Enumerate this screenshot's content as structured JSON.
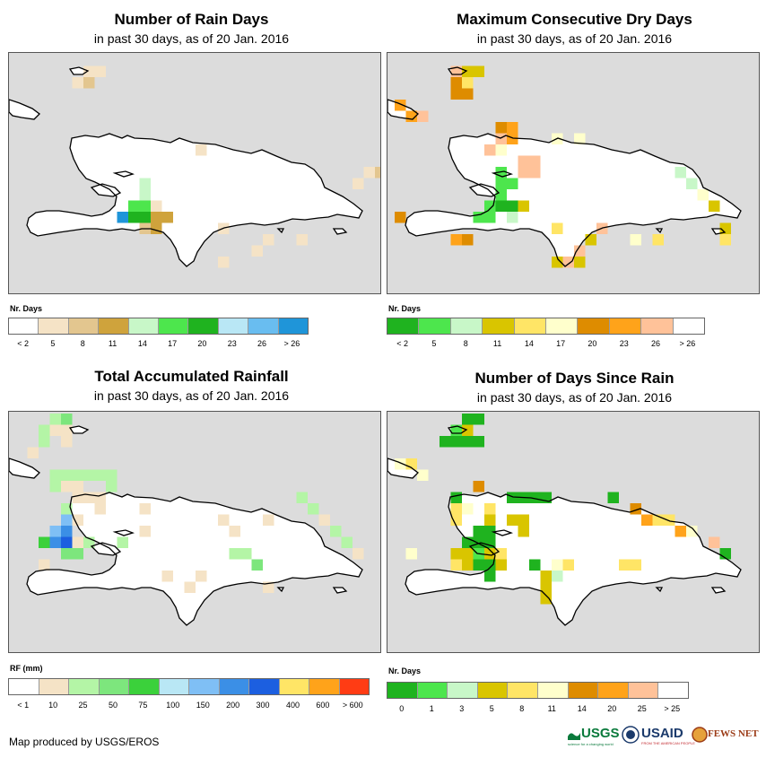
{
  "panels": [
    {
      "id": "rain_days",
      "title": "Number of Rain Days",
      "subtitle": "in past 30 days, as of 20 Jan. 2016",
      "legend_title": "Nr. Days",
      "legend_colors": [
        "#ffffff",
        "#f5e3c6",
        "#e3c68f",
        "#cfa33c",
        "#c8f7c8",
        "#4de64d",
        "#1fb31f",
        "#b9e7f5",
        "#69bdf0",
        "#1f95d9"
      ],
      "legend_labels": [
        "< 2",
        "5",
        "8",
        "11",
        "14",
        "17",
        "20",
        "23",
        "26",
        "> 26"
      ],
      "cells": [
        {
          "c": 6,
          "r": 1,
          "v": 1
        },
        {
          "c": 7,
          "r": 1,
          "v": 1
        },
        {
          "c": 6,
          "r": 2,
          "v": 2
        },
        {
          "c": 5,
          "r": 2,
          "v": 1
        },
        {
          "c": 16,
          "r": 8,
          "v": 1
        },
        {
          "c": 11,
          "r": 11,
          "v": 4
        },
        {
          "c": 11,
          "r": 12,
          "v": 4
        },
        {
          "c": 11,
          "r": 13,
          "v": 5
        },
        {
          "c": 9,
          "r": 14,
          "v": 9
        },
        {
          "c": 10,
          "r": 14,
          "v": 6
        },
        {
          "c": 11,
          "r": 14,
          "v": 6
        },
        {
          "c": 12,
          "r": 14,
          "v": 3
        },
        {
          "c": 13,
          "r": 14,
          "v": 3
        },
        {
          "c": 10,
          "r": 13,
          "v": 5
        },
        {
          "c": 12,
          "r": 13,
          "v": 1
        },
        {
          "c": 11,
          "r": 15,
          "v": 2
        },
        {
          "c": 12,
          "r": 15,
          "v": 3
        },
        {
          "c": 31,
          "r": 10,
          "v": 1
        },
        {
          "c": 32,
          "r": 10,
          "v": 2
        },
        {
          "c": 33,
          "r": 11,
          "v": 2
        },
        {
          "c": 33,
          "r": 12,
          "v": 3
        },
        {
          "c": 30,
          "r": 11,
          "v": 1
        },
        {
          "c": 18,
          "r": 15,
          "v": 1
        },
        {
          "c": 22,
          "r": 16,
          "v": 1
        },
        {
          "c": 25,
          "r": 16,
          "v": 1
        },
        {
          "c": 18,
          "r": 18,
          "v": 1
        },
        {
          "c": 21,
          "r": 17,
          "v": 1
        }
      ]
    },
    {
      "id": "max_dry_days",
      "title": "Maximum Consecutive Dry Days",
      "subtitle": "in past 30 days, as of 20 Jan. 2016",
      "legend_title": "Nr. Days",
      "legend_colors": [
        "#1fb31f",
        "#4de64d",
        "#c8f7c8",
        "#d9c500",
        "#ffe566",
        "#ffffcc",
        "#de8c00",
        "#ffa31a",
        "#ffc299",
        "#ffffff"
      ],
      "legend_labels": [
        "< 2",
        "5",
        "8",
        "11",
        "14",
        "17",
        "20",
        "23",
        "26",
        "> 26"
      ],
      "cells": [
        {
          "c": 5,
          "r": 1,
          "v": 8
        },
        {
          "c": 6,
          "r": 1,
          "v": 3
        },
        {
          "c": 7,
          "r": 1,
          "v": 3
        },
        {
          "c": 5,
          "r": 2,
          "v": 6
        },
        {
          "c": 6,
          "r": 2,
          "v": 4
        },
        {
          "c": 5,
          "r": 3,
          "v": 6
        },
        {
          "c": 6,
          "r": 3,
          "v": 6
        },
        {
          "c": 0,
          "r": 4,
          "v": 7
        },
        {
          "c": 1,
          "r": 5,
          "v": 7
        },
        {
          "c": 2,
          "r": 5,
          "v": 8
        },
        {
          "c": 9,
          "r": 6,
          "v": 6
        },
        {
          "c": 10,
          "r": 6,
          "v": 7
        },
        {
          "c": 9,
          "r": 7,
          "v": 8
        },
        {
          "c": 10,
          "r": 7,
          "v": 7
        },
        {
          "c": 8,
          "r": 8,
          "v": 8
        },
        {
          "c": 9,
          "r": 8,
          "v": 5
        },
        {
          "c": 11,
          "r": 9,
          "v": 8
        },
        {
          "c": 12,
          "r": 9,
          "v": 8
        },
        {
          "c": 11,
          "r": 10,
          "v": 8
        },
        {
          "c": 12,
          "r": 10,
          "v": 8
        },
        {
          "c": 9,
          "r": 10,
          "v": 1
        },
        {
          "c": 9,
          "r": 11,
          "v": 1
        },
        {
          "c": 9,
          "r": 12,
          "v": 1
        },
        {
          "c": 8,
          "r": 13,
          "v": 1
        },
        {
          "c": 9,
          "r": 13,
          "v": 0
        },
        {
          "c": 10,
          "r": 13,
          "v": 0
        },
        {
          "c": 10,
          "r": 14,
          "v": 2
        },
        {
          "c": 7,
          "r": 14,
          "v": 1
        },
        {
          "c": 8,
          "r": 14,
          "v": 1
        },
        {
          "c": 10,
          "r": 11,
          "v": 1
        },
        {
          "c": 11,
          "r": 13,
          "v": 3
        },
        {
          "c": 0,
          "r": 14,
          "v": 6
        },
        {
          "c": 5,
          "r": 16,
          "v": 7
        },
        {
          "c": 6,
          "r": 16,
          "v": 6
        },
        {
          "c": 14,
          "r": 15,
          "v": 4
        },
        {
          "c": 18,
          "r": 15,
          "v": 8
        },
        {
          "c": 17,
          "r": 16,
          "v": 3
        },
        {
          "c": 16,
          "r": 17,
          "v": 8
        },
        {
          "c": 14,
          "r": 18,
          "v": 3
        },
        {
          "c": 15,
          "r": 18,
          "v": 8
        },
        {
          "c": 16,
          "r": 18,
          "v": 3
        },
        {
          "c": 21,
          "r": 16,
          "v": 5
        },
        {
          "c": 23,
          "r": 16,
          "v": 4
        },
        {
          "c": 25,
          "r": 10,
          "v": 2
        },
        {
          "c": 26,
          "r": 11,
          "v": 2
        },
        {
          "c": 27,
          "r": 12,
          "v": 5
        },
        {
          "c": 28,
          "r": 13,
          "v": 3
        },
        {
          "c": 29,
          "r": 15,
          "v": 3
        },
        {
          "c": 29,
          "r": 16,
          "v": 4
        },
        {
          "c": 14,
          "r": 7,
          "v": 5
        },
        {
          "c": 16,
          "r": 7,
          "v": 5
        }
      ]
    },
    {
      "id": "total_rainfall",
      "title": "Total Accumulated Rainfall",
      "subtitle": "in past 30 days, as of 20 Jan. 2016",
      "legend_title": "RF (mm)",
      "legend_colors": [
        "#ffffff",
        "#f5e3c6",
        "#b4f5a6",
        "#7de67d",
        "#3bd13b",
        "#b9e7f5",
        "#7fbff5",
        "#3b8fe6",
        "#1c5fe0",
        "#ffe566",
        "#ffa31a",
        "#ff3c14"
      ],
      "legend_labels": [
        "< 1",
        "10",
        "25",
        "50",
        "75",
        "100",
        "150",
        "200",
        "300",
        "400",
        "600",
        "> 600"
      ],
      "cells": [
        {
          "c": 3,
          "r": 0,
          "v": 2
        },
        {
          "c": 4,
          "r": 0,
          "v": 3
        },
        {
          "c": 3,
          "r": 1,
          "v": 1
        },
        {
          "c": 4,
          "r": 1,
          "v": 1
        },
        {
          "c": 2,
          "r": 1,
          "v": 2
        },
        {
          "c": 2,
          "r": 2,
          "v": 2
        },
        {
          "c": 4,
          "r": 2,
          "v": 1
        },
        {
          "c": 1,
          "r": 3,
          "v": 1
        },
        {
          "c": 3,
          "r": 5,
          "v": 2
        },
        {
          "c": 4,
          "r": 5,
          "v": 2
        },
        {
          "c": 5,
          "r": 5,
          "v": 2
        },
        {
          "c": 6,
          "r": 5,
          "v": 2
        },
        {
          "c": 3,
          "r": 6,
          "v": 2
        },
        {
          "c": 7,
          "r": 5,
          "v": 2
        },
        {
          "c": 8,
          "r": 5,
          "v": 2
        },
        {
          "c": 8,
          "r": 6,
          "v": 2
        },
        {
          "c": 4,
          "r": 6,
          "v": 1
        },
        {
          "c": 5,
          "r": 6,
          "v": 1
        },
        {
          "c": 6,
          "r": 7,
          "v": 1
        },
        {
          "c": 5,
          "r": 7,
          "v": 1
        },
        {
          "c": 4,
          "r": 8,
          "v": 2
        },
        {
          "c": 4,
          "r": 9,
          "v": 6
        },
        {
          "c": 4,
          "r": 10,
          "v": 7
        },
        {
          "c": 5,
          "r": 9,
          "v": 1
        },
        {
          "c": 3,
          "r": 10,
          "v": 6
        },
        {
          "c": 4,
          "r": 11,
          "v": 8
        },
        {
          "c": 3,
          "r": 11,
          "v": 7
        },
        {
          "c": 2,
          "r": 11,
          "v": 4
        },
        {
          "c": 5,
          "r": 11,
          "v": 1
        },
        {
          "c": 4,
          "r": 12,
          "v": 3
        },
        {
          "c": 5,
          "r": 12,
          "v": 3
        },
        {
          "c": 6,
          "r": 11,
          "v": 2
        },
        {
          "c": 7,
          "r": 8,
          "v": 1
        },
        {
          "c": 7,
          "r": 7,
          "v": 1
        },
        {
          "c": 11,
          "r": 10,
          "v": 1
        },
        {
          "c": 9,
          "r": 11,
          "v": 2
        },
        {
          "c": 2,
          "r": 13,
          "v": 1
        },
        {
          "c": 13,
          "r": 14,
          "v": 1
        },
        {
          "c": 16,
          "r": 14,
          "v": 1
        },
        {
          "c": 15,
          "r": 15,
          "v": 1
        },
        {
          "c": 19,
          "r": 12,
          "v": 2
        },
        {
          "c": 20,
          "r": 12,
          "v": 2
        },
        {
          "c": 25,
          "r": 7,
          "v": 2
        },
        {
          "c": 26,
          "r": 8,
          "v": 2
        },
        {
          "c": 27,
          "r": 9,
          "v": 1
        },
        {
          "c": 28,
          "r": 10,
          "v": 2
        },
        {
          "c": 29,
          "r": 11,
          "v": 2
        },
        {
          "c": 22,
          "r": 9,
          "v": 1
        },
        {
          "c": 11,
          "r": 8,
          "v": 1
        },
        {
          "c": 21,
          "r": 13,
          "v": 3
        },
        {
          "c": 22,
          "r": 15,
          "v": 1
        },
        {
          "c": 30,
          "r": 12,
          "v": 1
        },
        {
          "c": 19,
          "r": 10,
          "v": 1
        },
        {
          "c": 18,
          "r": 9,
          "v": 1
        }
      ]
    },
    {
      "id": "days_since_rain",
      "title": "Number of Days Since Rain",
      "subtitle": "in past 30 days, as of 20 Jan. 2016",
      "legend_title": "Nr. Days",
      "legend_colors": [
        "#1fb31f",
        "#4de64d",
        "#c8f7c8",
        "#d9c500",
        "#ffe566",
        "#ffffcc",
        "#de8c00",
        "#ffa31a",
        "#ffc299",
        "#ffffff"
      ],
      "legend_labels": [
        "0",
        "1",
        "3",
        "5",
        "8",
        "11",
        "14",
        "20",
        "25",
        "> 25"
      ],
      "cells": [
        {
          "c": 6,
          "r": 0,
          "v": 0
        },
        {
          "c": 7,
          "r": 0,
          "v": 0
        },
        {
          "c": 5,
          "r": 1,
          "v": 1
        },
        {
          "c": 6,
          "r": 1,
          "v": 3
        },
        {
          "c": 4,
          "r": 2,
          "v": 0
        },
        {
          "c": 5,
          "r": 2,
          "v": 0
        },
        {
          "c": 6,
          "r": 2,
          "v": 0
        },
        {
          "c": 7,
          "r": 2,
          "v": 0
        },
        {
          "c": 0,
          "r": 4,
          "v": 5
        },
        {
          "c": 1,
          "r": 4,
          "v": 4
        },
        {
          "c": 2,
          "r": 5,
          "v": 5
        },
        {
          "c": 5,
          "r": 7,
          "v": 0
        },
        {
          "c": 7,
          "r": 6,
          "v": 6
        },
        {
          "c": 10,
          "r": 7,
          "v": 0
        },
        {
          "c": 11,
          "r": 7,
          "v": 0
        },
        {
          "c": 12,
          "r": 7,
          "v": 0
        },
        {
          "c": 13,
          "r": 7,
          "v": 0
        },
        {
          "c": 19,
          "r": 7,
          "v": 0
        },
        {
          "c": 5,
          "r": 8,
          "v": 4
        },
        {
          "c": 6,
          "r": 8,
          "v": 5
        },
        {
          "c": 8,
          "r": 8,
          "v": 4
        },
        {
          "c": 5,
          "r": 9,
          "v": 4
        },
        {
          "c": 8,
          "r": 9,
          "v": 3
        },
        {
          "c": 10,
          "r": 9,
          "v": 3
        },
        {
          "c": 11,
          "r": 9,
          "v": 3
        },
        {
          "c": 11,
          "r": 10,
          "v": 3
        },
        {
          "c": 7,
          "r": 10,
          "v": 0
        },
        {
          "c": 8,
          "r": 10,
          "v": 0
        },
        {
          "c": 7,
          "r": 11,
          "v": 0
        },
        {
          "c": 8,
          "r": 11,
          "v": 0
        },
        {
          "c": 6,
          "r": 11,
          "v": 0
        },
        {
          "c": 5,
          "r": 12,
          "v": 3
        },
        {
          "c": 6,
          "r": 12,
          "v": 3
        },
        {
          "c": 7,
          "r": 12,
          "v": 1
        },
        {
          "c": 8,
          "r": 12,
          "v": 3
        },
        {
          "c": 9,
          "r": 12,
          "v": 4
        },
        {
          "c": 6,
          "r": 13,
          "v": 3
        },
        {
          "c": 7,
          "r": 13,
          "v": 0
        },
        {
          "c": 8,
          "r": 13,
          "v": 0
        },
        {
          "c": 5,
          "r": 13,
          "v": 4
        },
        {
          "c": 9,
          "r": 13,
          "v": 3
        },
        {
          "c": 1,
          "r": 12,
          "v": 5
        },
        {
          "c": 8,
          "r": 14,
          "v": 0
        },
        {
          "c": 12,
          "r": 13,
          "v": 0
        },
        {
          "c": 14,
          "r": 14,
          "v": 2
        },
        {
          "c": 15,
          "r": 13,
          "v": 4
        },
        {
          "c": 14,
          "r": 13,
          "v": 5
        },
        {
          "c": 13,
          "r": 14,
          "v": 3
        },
        {
          "c": 13,
          "r": 15,
          "v": 3
        },
        {
          "c": 13,
          "r": 16,
          "v": 3
        },
        {
          "c": 20,
          "r": 13,
          "v": 4
        },
        {
          "c": 21,
          "r": 13,
          "v": 4
        },
        {
          "c": 21,
          "r": 8,
          "v": 6
        },
        {
          "c": 22,
          "r": 9,
          "v": 7
        },
        {
          "c": 23,
          "r": 9,
          "v": 4
        },
        {
          "c": 24,
          "r": 9,
          "v": 4
        },
        {
          "c": 25,
          "r": 10,
          "v": 7
        },
        {
          "c": 26,
          "r": 10,
          "v": 5
        },
        {
          "c": 28,
          "r": 11,
          "v": 8
        },
        {
          "c": 29,
          "r": 12,
          "v": 0
        }
      ]
    }
  ],
  "footer": "Map produced by USGS/EROS",
  "logos": {
    "usgs": "USGS",
    "usgs_tagline": "science for a changing world",
    "usaid": "USAID",
    "usaid_tagline": "FROM THE AMERICAN PEOPLE",
    "fewsnet": "FEWS NET"
  }
}
